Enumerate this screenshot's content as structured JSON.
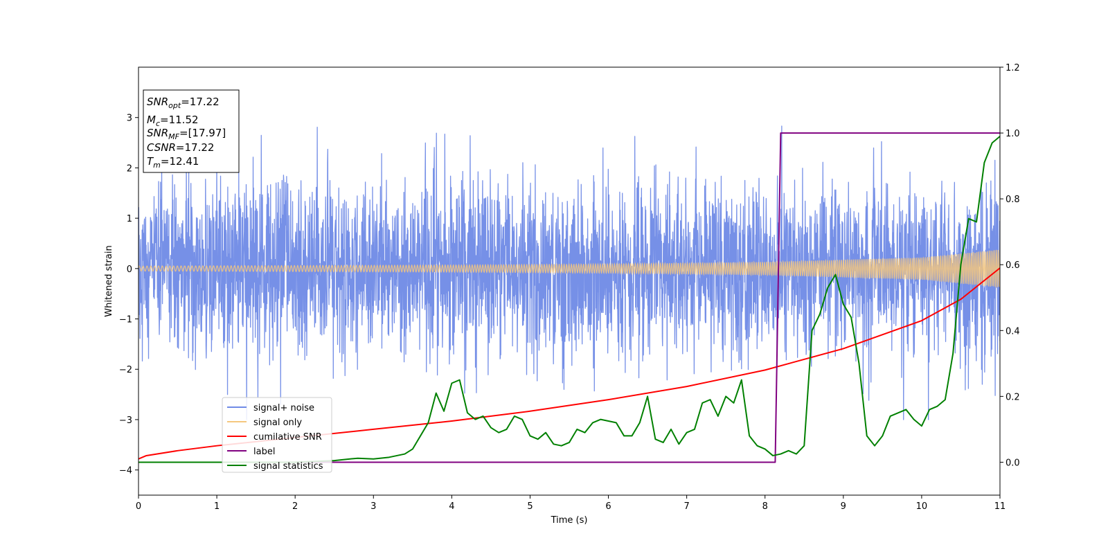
{
  "chart_data": {
    "type": "line",
    "xlabel": "Time (s)",
    "ylabel": "Whitened strain",
    "xlim": [
      0,
      11
    ],
    "ylim": [
      -4.5,
      4.0
    ],
    "y2lim": [
      -0.1,
      1.2
    ],
    "x_ticks": [
      "0",
      "1",
      "2",
      "3",
      "4",
      "5",
      "6",
      "7",
      "8",
      "9",
      "10",
      "11"
    ],
    "y_ticks": [
      "3",
      "2",
      "1",
      "0",
      "−1",
      "−2",
      "−3",
      "−4"
    ],
    "y2_ticks": [
      "1.2",
      "1.0",
      "0.8",
      "0.6",
      "0.4",
      "0.2",
      "0.0"
    ],
    "grid": false,
    "legend_position": "lower-left",
    "info_box": {
      "lines": [
        {
          "symbol": "SNR",
          "sub": "opt",
          "value": "=17.22"
        },
        {
          "symbol": "M",
          "sub": "c",
          "value": "=11.52"
        },
        {
          "symbol": "SNR",
          "sub": "MF",
          "value": "=[17.97]"
        },
        {
          "symbol": "CSNR",
          "sub": "",
          "value": "=17.22"
        },
        {
          "symbol": "T",
          "sub": "m",
          "value": "=12.41"
        }
      ]
    },
    "series": [
      {
        "name": "signal+ noise",
        "axis": "left",
        "color": "#6f8ae6",
        "kind": "noise",
        "amplitude_sigma": 0.85,
        "y_range_observed": [
          -3.0,
          3.35
        ]
      },
      {
        "name": "signal only",
        "axis": "left",
        "color": "#f5c77e",
        "kind": "chirp",
        "x": [
          0,
          2,
          4,
          6,
          8,
          10,
          11
        ],
        "envelope": [
          0.05,
          0.06,
          0.07,
          0.09,
          0.13,
          0.22,
          0.38
        ]
      },
      {
        "name": "cumilative SNR",
        "axis": "right",
        "color": "#ff0000",
        "x": [
          0,
          0.1,
          0.5,
          1,
          2,
          3,
          4,
          5,
          6,
          7,
          8,
          9,
          10,
          10.5,
          11
        ],
        "y": [
          0.01,
          0.02,
          0.035,
          0.05,
          0.075,
          0.1,
          0.125,
          0.155,
          0.19,
          0.23,
          0.28,
          0.345,
          0.43,
          0.495,
          0.59
        ]
      },
      {
        "name": "label",
        "axis": "right",
        "color": "#800080",
        "x": [
          0,
          8.13,
          8.2,
          11
        ],
        "y": [
          0.0,
          0.0,
          1.0,
          1.0
        ]
      },
      {
        "name": "signal statistics",
        "axis": "right",
        "color": "#008000",
        "x": [
          0,
          0.5,
          1,
          1.5,
          2,
          2.5,
          2.7,
          2.8,
          3.0,
          3.2,
          3.4,
          3.5,
          3.6,
          3.7,
          3.8,
          3.9,
          4.0,
          4.1,
          4.2,
          4.3,
          4.4,
          4.5,
          4.6,
          4.7,
          4.8,
          4.9,
          5.0,
          5.1,
          5.2,
          5.3,
          5.4,
          5.5,
          5.6,
          5.7,
          5.8,
          5.9,
          6.0,
          6.1,
          6.2,
          6.3,
          6.4,
          6.5,
          6.6,
          6.7,
          6.8,
          6.9,
          7.0,
          7.1,
          7.2,
          7.3,
          7.4,
          7.5,
          7.6,
          7.7,
          7.8,
          7.9,
          8.0,
          8.1,
          8.2,
          8.3,
          8.4,
          8.5,
          8.6,
          8.7,
          8.8,
          8.9,
          9.0,
          9.1,
          9.2,
          9.3,
          9.4,
          9.5,
          9.6,
          9.7,
          9.8,
          9.9,
          10.0,
          10.1,
          10.2,
          10.3,
          10.4,
          10.5,
          10.6,
          10.7,
          10.8,
          10.9,
          11.0
        ],
        "y": [
          0.0,
          0.0,
          0.0,
          0.0,
          0.0,
          0.005,
          0.01,
          0.012,
          0.01,
          0.015,
          0.025,
          0.04,
          0.08,
          0.12,
          0.21,
          0.155,
          0.24,
          0.25,
          0.15,
          0.13,
          0.14,
          0.105,
          0.09,
          0.1,
          0.14,
          0.13,
          0.08,
          0.07,
          0.09,
          0.055,
          0.05,
          0.06,
          0.1,
          0.09,
          0.12,
          0.13,
          0.125,
          0.12,
          0.08,
          0.08,
          0.12,
          0.2,
          0.07,
          0.06,
          0.1,
          0.055,
          0.09,
          0.1,
          0.18,
          0.19,
          0.14,
          0.2,
          0.18,
          0.25,
          0.08,
          0.05,
          0.04,
          0.02,
          0.025,
          0.035,
          0.025,
          0.05,
          0.4,
          0.45,
          0.53,
          0.57,
          0.48,
          0.44,
          0.3,
          0.08,
          0.05,
          0.08,
          0.14,
          0.15,
          0.16,
          0.13,
          0.11,
          0.16,
          0.17,
          0.19,
          0.33,
          0.6,
          0.74,
          0.73,
          0.91,
          0.97,
          0.99
        ]
      }
    ]
  }
}
